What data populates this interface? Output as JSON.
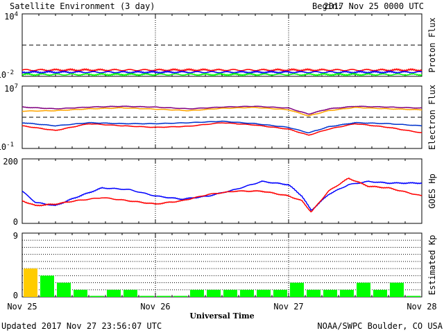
{
  "header": {
    "title": "Satellite Environment (3 day)",
    "begin_label": "Begin:",
    "begin_value": "2017 Nov 25 0000 UTC"
  },
  "footer": {
    "updated": "Updated 2017 Nov 27 23:56:07 UTC",
    "credit": "NOAA/SWPC Boulder, CO USA",
    "xlabel": "Universal Time"
  },
  "x_ticks": [
    "Nov 25",
    "Nov 26",
    "Nov 27",
    "Nov 28"
  ],
  "colors": {
    "red": "#ff0000",
    "blue": "#0000ff",
    "green": "#00ff00",
    "purple": "#800080",
    "orange": "#ffa500",
    "navy": "#0033cc",
    "yellow": "#ffcc00",
    "axis": "#000000"
  },
  "chart_data": [
    {
      "type": "line",
      "ylabel": "Proton Flux",
      "ylim_label_top": "10",
      "ylim_label_top_exp": "4",
      "ylim_label_bottom": "10",
      "ylim_label_bottom_exp": "-2",
      "y_scale": "log",
      "ylim": [
        0.01,
        10000
      ],
      "x": [
        0,
        0.25,
        0.5,
        0.75,
        1.0,
        1.25,
        1.5,
        1.75,
        2.0,
        2.25,
        2.5,
        2.75,
        3.0
      ],
      "series": [
        {
          "color": "red",
          "values": [
            0.04,
            0.04,
            0.04,
            0.04,
            0.04,
            0.04,
            0.04,
            0.04,
            0.04,
            0.04,
            0.04,
            0.04,
            0.04
          ]
        },
        {
          "color": "blue",
          "values": [
            0.025,
            0.025,
            0.025,
            0.025,
            0.025,
            0.025,
            0.025,
            0.025,
            0.025,
            0.025,
            0.025,
            0.025,
            0.025
          ]
        },
        {
          "color": "green",
          "values": [
            0.015,
            0.015,
            0.015,
            0.015,
            0.015,
            0.015,
            0.015,
            0.015,
            0.015,
            0.015,
            0.015,
            0.015,
            0.015
          ]
        }
      ],
      "threshold": 10,
      "grid": "vertical dotted at day boundaries"
    },
    {
      "type": "line",
      "ylabel": "Electron Flux",
      "ylim_label_top": "10",
      "ylim_label_top_exp": "7",
      "ylim_label_bottom": "10",
      "ylim_label_bottom_exp": "-1",
      "y_scale": "log",
      "ylim": [
        0.1,
        10000000
      ],
      "x": [
        0,
        0.25,
        0.5,
        0.75,
        1.0,
        1.25,
        1.5,
        1.75,
        2.0,
        2.15,
        2.3,
        2.5,
        2.75,
        3.0
      ],
      "series": [
        {
          "color": "purple",
          "values": [
            20000,
            12000,
            20000,
            25000,
            20000,
            12000,
            20000,
            25000,
            15000,
            2500,
            12000,
            25000,
            20000,
            15000
          ]
        },
        {
          "color": "orange",
          "values": [
            6000,
            7000,
            12000,
            16000,
            11000,
            7000,
            14000,
            18000,
            9000,
            1500,
            7000,
            18000,
            12000,
            9000
          ]
        },
        {
          "color": "red",
          "values": [
            80,
            20,
            150,
            80,
            50,
            70,
            200,
            100,
            30,
            5,
            30,
            150,
            50,
            10
          ]
        },
        {
          "color": "navy",
          "values": [
            200,
            80,
            200,
            150,
            150,
            200,
            300,
            150,
            50,
            10,
            60,
            200,
            150,
            80
          ]
        }
      ],
      "threshold": 1000,
      "grid": "vertical dotted at day boundaries"
    },
    {
      "type": "line",
      "ylabel": "GOES Hp",
      "ylim_label_top": "200",
      "ylim_label_bottom": "0",
      "ylim": [
        0,
        200
      ],
      "x": [
        0,
        0.1,
        0.25,
        0.4,
        0.6,
        0.8,
        1.0,
        1.2,
        1.4,
        1.6,
        1.8,
        2.0,
        2.1,
        2.17,
        2.3,
        2.45,
        2.6,
        2.75,
        3.0
      ],
      "series": [
        {
          "color": "blue",
          "values": [
            100,
            65,
            55,
            80,
            110,
            105,
            85,
            75,
            85,
            105,
            130,
            120,
            85,
            40,
            90,
            120,
            130,
            125,
            125
          ]
        },
        {
          "color": "red",
          "values": [
            70,
            55,
            60,
            70,
            80,
            70,
            60,
            70,
            90,
            100,
            100,
            85,
            70,
            35,
            100,
            140,
            115,
            110,
            85
          ]
        }
      ],
      "grid": "vertical dotted at day boundaries"
    },
    {
      "type": "bar",
      "ylabel": "Estimated Kp",
      "ylim_label_top": "9",
      "ylim_label_bottom": "0",
      "ylim": [
        0,
        9
      ],
      "interval_hours": 3,
      "values": [
        4,
        3,
        2,
        1,
        0,
        1,
        1,
        0,
        0,
        0,
        1,
        1,
        1,
        1,
        1,
        1,
        2,
        1,
        1,
        1,
        2,
        1,
        2,
        0
      ],
      "color_rule": "green below 4, yellow at 4",
      "grid": "horizontal dotted at each Kp unit"
    }
  ]
}
